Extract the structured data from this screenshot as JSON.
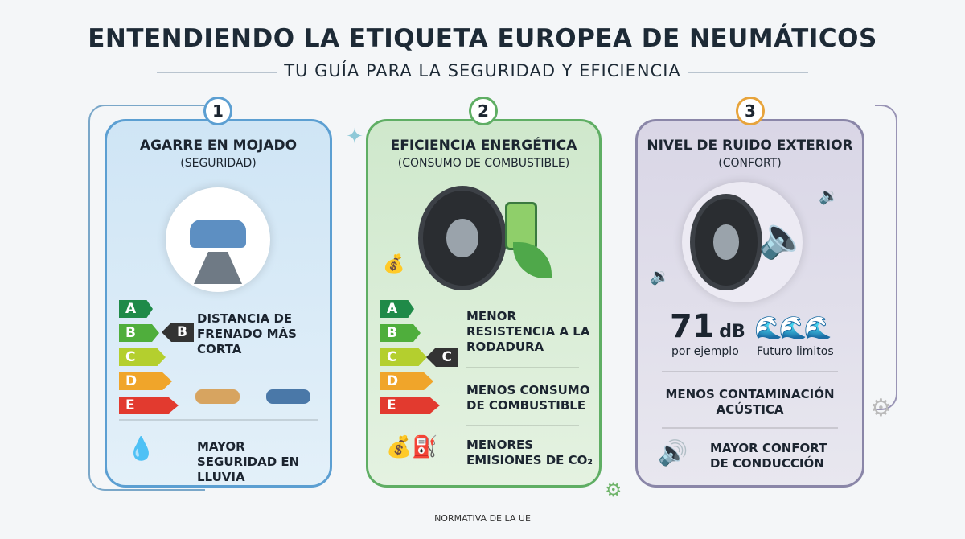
{
  "header": {
    "title": "ENTENDIENDO LA ETIQUETA EUROPEA DE NEUMÁTICOS",
    "subtitle": "TU GUÍA PARA LA SEGURIDAD Y EFICIENCIA"
  },
  "panels": [
    {
      "number": "1",
      "title": "AGARRE EN MOJADO",
      "subtitle": "(SEGURIDAD)",
      "grades": [
        "A",
        "B",
        "C",
        "D",
        "E"
      ],
      "selected": "B",
      "items": [
        "DISTANCIA DE FRENADO MÁS CORTA",
        "MAYOR SEGURIDAD EN LLUVIA"
      ],
      "accent": "#5c9fd2"
    },
    {
      "number": "2",
      "title": "EFICIENCIA ENERGÉTICA",
      "subtitle": "(CONSUMO DE COMBUSTIBLE)",
      "grades": [
        "A",
        "B",
        "C",
        "D",
        "E"
      ],
      "selected": "C",
      "items": [
        "MENOR RESISTENCIA A LA RODADURA",
        "MENOS CONSUMO DE COMBUSTIBLE",
        "MENORES EMISIONES DE CO₂"
      ],
      "accent": "#5fae64"
    },
    {
      "number": "3",
      "title": "NIVEL DE RUIDO EXTERIOR",
      "subtitle": "(CONFORT)",
      "db_value": "71",
      "db_unit": "dB",
      "db_caption": "por ejemplo",
      "waves_caption": "Futuro limitos",
      "items": [
        "MENOS CONTAMINACIÓN ACÚSTICA",
        "MAYOR CONFORT DE CONDUCCIÓN"
      ],
      "accent": "#e7a43c"
    }
  ],
  "grade_colors": [
    "#1f8a48",
    "#4fae3c",
    "#b4cf2e",
    "#f0a52a",
    "#e23a2f"
  ],
  "footer": "NORMATIVA DE LA UE"
}
